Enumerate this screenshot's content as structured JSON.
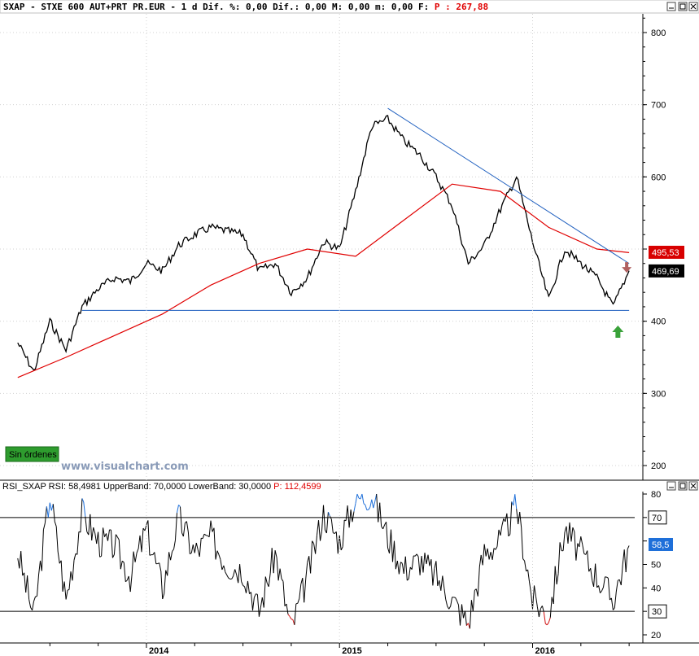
{
  "header": {
    "symbol": "SXAP",
    "description": "STXE 600 AUT+PRT PR.EUR",
    "interval": "1 d",
    "fields": "Dif. %: 0,00 Dif.: 0,00 M: 0,00 m: 0,00 F:",
    "price_field": "P : 267,88"
  },
  "indicator_header": {
    "name": "RSI_SXAP",
    "rsi": "RSI: 58,4981",
    "upper": "UpperBand: 70,0000",
    "lower": "LowerBand: 30,0000",
    "price": "P: 112,4599"
  },
  "orders_badge": "Sin órdenes",
  "watermark": "www.visualchart.com",
  "colors": {
    "price_line": "#000000",
    "ma_line": "#e00000",
    "trend_line": "#1f5fbf",
    "rsi_overbought": "#1e6fd9",
    "rsi_oversold": "#d01010",
    "badge_bg": "#2e9c2e",
    "last_tag_bg": "#000000",
    "ma_tag_bg": "#d80000",
    "rsi_tag_bg": "#1e6fd9",
    "buy_arrow": "#3aa23a",
    "sell_arrow": "#b06060"
  },
  "chart_data": [
    {
      "type": "line",
      "series": [
        {
          "x": [
            "2013-05",
            "2013-06",
            "2013-07",
            "2013-08",
            "2013-09",
            "2013-10",
            "2013-11",
            "2013-12",
            "2014-01",
            "2014-02",
            "2014-03",
            "2014-04",
            "2014-05",
            "2014-06",
            "2014-07",
            "2014-08",
            "2014-09",
            "2014-10",
            "2014-11",
            "2014-12",
            "2015-01",
            "2015-02",
            "2015-03",
            "2015-04",
            "2015-05",
            "2015-06",
            "2015-07",
            "2015-08",
            "2015-09",
            "2015-10",
            "2015-11",
            "2015-12",
            "2016-01",
            "2016-02",
            "2016-03",
            "2016-04",
            "2016-05",
            "2016-06",
            "2016-07"
          ],
          "values": [
            370,
            330,
            400,
            360,
            420,
            445,
            460,
            455,
            480,
            470,
            505,
            520,
            530,
            525,
            520,
            470,
            480,
            440,
            460,
            510,
            500,
            580,
            670,
            680,
            650,
            630,
            600,
            560,
            480,
            505,
            555,
            600,
            510,
            430,
            500,
            480,
            460,
            420,
            470
          ]
        },
        {
          "x": [
            "2013-05",
            "2013-08",
            "2013-11",
            "2014-02",
            "2014-05",
            "2014-08",
            "2014-11",
            "2015-02",
            "2015-05",
            "2015-08",
            "2015-11",
            "2016-02",
            "2016-05",
            "2016-07"
          ],
          "values": [
            322,
            350,
            380,
            410,
            450,
            480,
            500,
            490,
            540,
            590,
            580,
            530,
            500,
            495
          ]
        }
      ],
      "ylim": [
        180,
        830
      ],
      "yticks": [
        200,
        300,
        400,
        500,
        600,
        700,
        800
      ],
      "xtick_labels": [
        "2014",
        "2015",
        "2016"
      ],
      "value_tags": [
        "495,53",
        "469,69"
      ]
    },
    {
      "type": "line",
      "series": [
        {
          "x": [
            "2013-05",
            "2013-06",
            "2013-07",
            "2013-08",
            "2013-09",
            "2013-10",
            "2013-11",
            "2013-12",
            "2014-01",
            "2014-02",
            "2014-03",
            "2014-04",
            "2014-05",
            "2014-06",
            "2014-07",
            "2014-08",
            "2014-09",
            "2014-10",
            "2014-11",
            "2014-12",
            "2015-01",
            "2015-02",
            "2015-03",
            "2015-04",
            "2015-05",
            "2015-06",
            "2015-07",
            "2015-08",
            "2015-09",
            "2015-10",
            "2015-11",
            "2015-12",
            "2016-01",
            "2016-02",
            "2016-03",
            "2016-04",
            "2016-05",
            "2016-06",
            "2016-07"
          ],
          "values": [
            55,
            28,
            80,
            35,
            72,
            60,
            58,
            45,
            65,
            40,
            70,
            55,
            62,
            50,
            48,
            30,
            55,
            22,
            45,
            72,
            60,
            78,
            80,
            62,
            48,
            52,
            45,
            35,
            25,
            55,
            60,
            75,
            35,
            28,
            65,
            55,
            45,
            35,
            58
          ]
        }
      ],
      "ylim": [
        18,
        82
      ],
      "yticks": [
        20,
        30,
        40,
        50,
        60,
        70,
        80
      ],
      "bands": [
        70,
        30
      ],
      "value_tags": [
        "70",
        "58,5",
        "30"
      ]
    }
  ]
}
